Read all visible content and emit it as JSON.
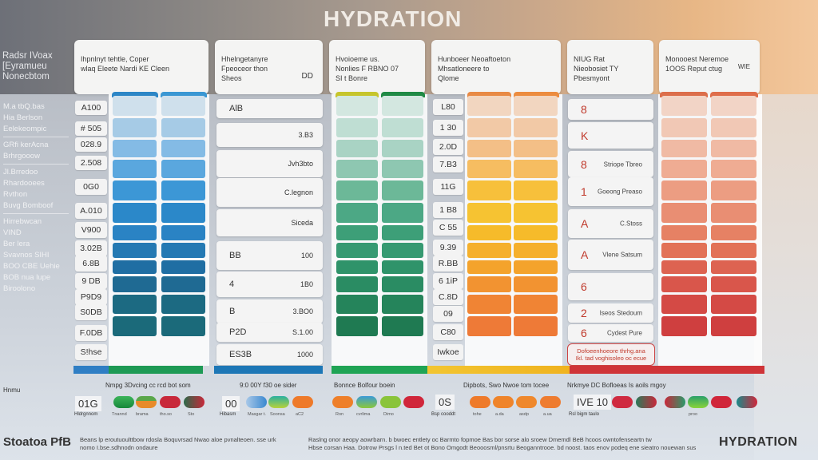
{
  "title": "HYDRATION",
  "side_header": [
    "Radsr IVoax",
    "[Eyramueu",
    "Nonecbtom"
  ],
  "header_cards": [
    {
      "lines": [
        "Ihpnlnyt tehtle, Coper",
        "wlaq Eleete Nardi KE Cleen"
      ],
      "extra": ""
    },
    {
      "lines": [
        "Hhelngetanyre",
        "Fpeoceor thon",
        "Sheos"
      ],
      "extra": "DD"
    },
    {
      "lines": [
        "Hvoioeme us.",
        "Nonlies F RBNO 07",
        "SI t Bonre"
      ],
      "extra": ""
    },
    {
      "lines": [
        "Hunboeer Neoaftoeton",
        "Mhsatloneere to",
        "Qlome"
      ],
      "extra": ""
    },
    {
      "lines": [
        "NIUG Rat",
        "Nieobosiet TY",
        "Pbesmyont"
      ],
      "extra": ""
    },
    {
      "lines": [
        "Monooest Neremoe",
        "1OOS Reput ctug"
      ],
      "extra": "WIE"
    }
  ],
  "side_list": [
    "M.a tbQ.bas",
    "Hia Berlson",
    "Eelekeompic",
    "GRfi kerAcna",
    "Brhrgooow",
    "Jl.Brredoo",
    "Rhardooees",
    "Rvthon",
    "Buvg Bomboof",
    "Hirrebwcan",
    "VIND",
    "Ber lera",
    "Svavnos SIHI",
    "BOO CBE Uehie",
    "BOB nua lupe",
    "Biroolono"
  ],
  "blue_col": {
    "values": [
      "A100",
      "# 505",
      "028.9",
      "2.508",
      "0G0",
      "A.010",
      "V900",
      "3.02B",
      "6.8B",
      "9 DB",
      "P9D9",
      "S0DB",
      "F.0DB",
      "S!hse"
    ]
  },
  "mid_col": {
    "rows": [
      {
        "l": "AlB",
        "r": ""
      },
      {
        "l": "",
        "r": "3.B3"
      },
      {
        "l": "",
        "r": "Jvh3bto"
      },
      {
        "l": "",
        "r": "C.legnon"
      },
      {
        "l": "",
        "r": "Siceda"
      },
      {
        "l": "BB",
        "r": "100"
      },
      {
        "l": "4",
        "r": "1B0"
      },
      {
        "l": "B",
        "r": "3.BO0"
      },
      {
        "l": "P2D",
        "r": "S.1.00"
      },
      {
        "l": "ES3B",
        "r": "1000"
      }
    ]
  },
  "orange_col": {
    "values": [
      "L80",
      "1 30",
      "2.0D",
      "7.B3",
      "11G",
      "1 B8",
      "C 55",
      "9.39",
      "R.BB",
      "6 1iP",
      "C.8D",
      "09",
      "C80",
      "Iwkoe"
    ]
  },
  "red_col": {
    "rows": [
      {
        "l": "8",
        "r": ""
      },
      {
        "l": "K",
        "r": ""
      },
      {
        "l": "8",
        "r": "Striope Tbreo"
      },
      {
        "l": "1",
        "r": "Goeong Preaso"
      },
      {
        "l": "A",
        "r": "C.Stoss"
      },
      {
        "l": "A",
        "r": "Vlene Satsum"
      },
      {
        "l": "6",
        "r": ""
      },
      {
        "l": "2",
        "r": "Iseos Stedoum"
      },
      {
        "l": "6",
        "r": "Cydest Pure"
      }
    ],
    "note": [
      "Dofoeenhoeore thrhg.ana",
      "Ikl. tad voghisoleo oc ecue"
    ]
  },
  "colors": {
    "blue": [
      "#cfe0ec",
      "#a6cbe6",
      "#84bbe5",
      "#5aa7de",
      "#3c97d6",
      "#2b88c9",
      "#2a83c4",
      "#2479b3",
      "#1f6ea3",
      "#1f6a93",
      "#1c6a82",
      "#1b6a7a"
    ],
    "green": [
      "#d3e7e0",
      "#bfded3",
      "#a9d3c4",
      "#8ec7b1",
      "#6cb898",
      "#4ca885",
      "#3d9f78",
      "#369a72",
      "#2f936a",
      "#2a8c63",
      "#25845b",
      "#1f7a52"
    ],
    "orange": [
      "#f2d6c0",
      "#f2c9a6",
      "#f3bf87",
      "#f6bd61",
      "#f7c03b",
      "#f6c332",
      "#f6bb2a",
      "#f5b02c",
      "#f4a32c",
      "#f29331",
      "#f08434",
      "#ee7a37"
    ],
    "coral": [
      "#f2d4c6",
      "#f1c8b5",
      "#f0baa4",
      "#efac93",
      "#ec9d82",
      "#e98e73",
      "#e68164",
      "#e27257",
      "#dd6351",
      "#d9564b",
      "#d44a45",
      "#cf3f3f"
    ]
  },
  "legend": {
    "label": "Hnmu",
    "groups": [
      {
        "heading": "Nmpg 3Dvcing cc rcd bot som",
        "num": "01G",
        "sub": "Hldrgnnom",
        "caps": [
          "Tnannd",
          "brama",
          "tho.so",
          "Sto"
        ]
      },
      {
        "heading": "9:0 00Y f30 oe sider",
        "num": "00",
        "sub": "Hibasm",
        "caps": [
          "Masgar t.",
          "Soonsa",
          "aC2"
        ]
      },
      {
        "heading": "Bonnce Bolfour boein",
        "num": "",
        "sub": "",
        "caps": [
          "Ron",
          "cvrlima",
          "Dimo"
        ]
      },
      {
        "heading": "Dipbots, Swo Nwoe tom tocee",
        "num": "0S",
        "sub": "Bsp cooddt",
        "caps": [
          "tohe",
          "a.da",
          "asdp",
          "a.ua"
        ]
      },
      {
        "heading": "Nrkmye DC Bofloeas Is aoils mgoy",
        "num": "IVE 10",
        "sub": "Rsl bigm taulo",
        "caps": [
          "",
          "",
          "proo"
        ]
      }
    ]
  },
  "footer": {
    "left": "Stoatoa PfB",
    "text1": [
      "Beans lp eroutuoulttbow rdosla Boquvrsad Nwao aloe pvnalteoen. sse urk",
      "nomo I.bse.sdhnodn ondaure"
    ],
    "text2": [
      "Raslng onor aeopy aowrbarn. b bwoec entlety oc Barmto fopmoe Bas bor sorse alo sroew Dmemdl BeB hcoos owntofenseartn tw",
      "Hbse corsan Haa. Dotrow Prsgs l n.ted Bet ot Bono Omgodt Beooosml/pnsrtu Beoganntrooe. bd noost. taos enov podeq ene sieatro nouewan sus"
    ],
    "brand": "HYDRATION"
  }
}
